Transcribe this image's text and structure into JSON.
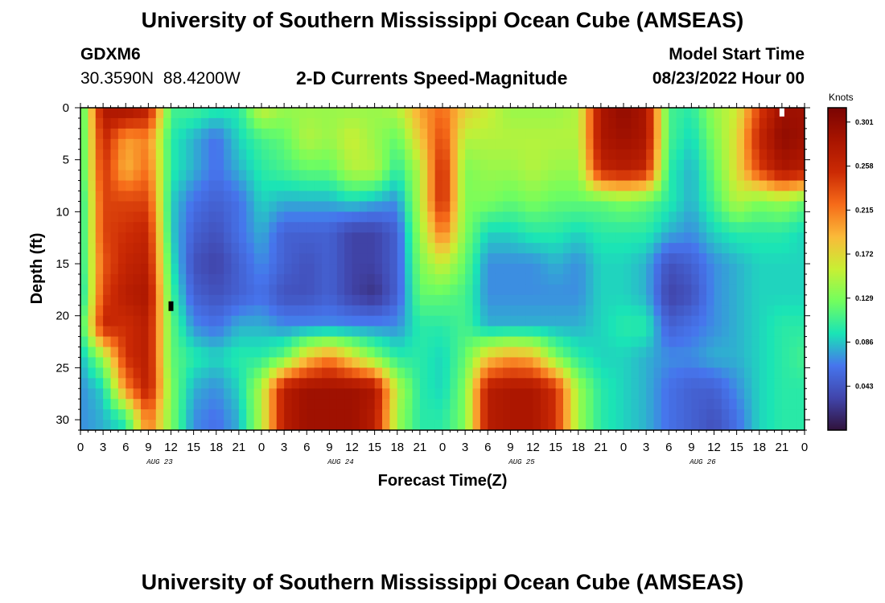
{
  "header": {
    "title": "University of Southern Mississippi Ocean Cube (AMSEAS)",
    "station": "GDXM6",
    "coordinates": "30.3590N  88.4200W",
    "plot_title": "2-D Currents Speed-Magnitude",
    "model_start_label": "Model Start Time",
    "model_start_value": "08/23/2022 Hour 00"
  },
  "footer": {
    "title": "University of Southern Mississippi Ocean Cube (AMSEAS)"
  },
  "chart_data": {
    "type": "heatmap",
    "title": "2-D Currents Speed-Magnitude",
    "xlabel": "Forecast Time(Z)",
    "ylabel": "Depth (ft)",
    "x_tick_labels": [
      "0",
      "3",
      "6",
      "9",
      "12",
      "15",
      "18",
      "21",
      "0",
      "3",
      "6",
      "9",
      "12",
      "15",
      "18",
      "21",
      "0",
      "3",
      "6",
      "9",
      "12",
      "15",
      "18",
      "21",
      "0",
      "3",
      "6",
      "9",
      "12",
      "15",
      "18",
      "21",
      "0"
    ],
    "xlim_hours": [
      0,
      96
    ],
    "date_labels": [
      {
        "label": "AUG 23",
        "hour": 10.5
      },
      {
        "label": "AUG 24",
        "hour": 34.5
      },
      {
        "label": "AUG 25",
        "hour": 58.5
      },
      {
        "label": "AUG 26",
        "hour": 82.5
      }
    ],
    "y_ticks": [
      0,
      5,
      10,
      15,
      20,
      25,
      30
    ],
    "ylim_ft": [
      0,
      31
    ],
    "colorbar": {
      "unit": "Knots",
      "ticks": [
        "0.301",
        "0.258",
        "0.215",
        "0.172",
        "0.129",
        "0.086",
        "0.043"
      ],
      "tick_values": [
        0.301,
        0.258,
        0.215,
        0.172,
        0.129,
        0.086,
        0.043
      ],
      "range": [
        0.0,
        0.315
      ]
    },
    "grid": {
      "hours": [
        0,
        3,
        6,
        9,
        12,
        15,
        18,
        21,
        24,
        27,
        30,
        33,
        36,
        39,
        42,
        45,
        48,
        51,
        54,
        57,
        60,
        63,
        66,
        69,
        72,
        75,
        78,
        81,
        84,
        87,
        90,
        93,
        96
      ],
      "depths_ft": [
        0,
        3,
        6,
        9,
        12,
        15,
        18,
        21,
        24,
        27,
        30
      ],
      "speed_knots": [
        [
          0.1,
          0.28,
          0.29,
          0.27,
          0.11,
          0.11,
          0.1,
          0.1,
          0.16,
          0.14,
          0.14,
          0.14,
          0.14,
          0.14,
          0.15,
          0.2,
          0.22,
          0.18,
          0.16,
          0.14,
          0.14,
          0.14,
          0.15,
          0.28,
          0.3,
          0.28,
          0.11,
          0.1,
          0.14,
          0.16,
          0.24,
          0.29,
          0.29
        ],
        [
          0.1,
          0.26,
          0.2,
          0.21,
          0.1,
          0.08,
          0.06,
          0.09,
          0.11,
          0.12,
          0.15,
          0.14,
          0.16,
          0.14,
          0.12,
          0.18,
          0.24,
          0.15,
          0.15,
          0.15,
          0.15,
          0.15,
          0.15,
          0.28,
          0.29,
          0.28,
          0.11,
          0.09,
          0.13,
          0.17,
          0.26,
          0.3,
          0.29
        ],
        [
          0.1,
          0.25,
          0.19,
          0.22,
          0.1,
          0.08,
          0.06,
          0.08,
          0.1,
          0.11,
          0.12,
          0.12,
          0.15,
          0.15,
          0.1,
          0.15,
          0.26,
          0.13,
          0.14,
          0.14,
          0.15,
          0.14,
          0.14,
          0.26,
          0.27,
          0.26,
          0.1,
          0.08,
          0.12,
          0.17,
          0.24,
          0.28,
          0.27
        ],
        [
          0.09,
          0.24,
          0.24,
          0.24,
          0.09,
          0.06,
          0.05,
          0.06,
          0.09,
          0.08,
          0.08,
          0.08,
          0.09,
          0.08,
          0.07,
          0.15,
          0.26,
          0.13,
          0.13,
          0.12,
          0.13,
          0.12,
          0.12,
          0.12,
          0.13,
          0.12,
          0.1,
          0.08,
          0.11,
          0.15,
          0.13,
          0.14,
          0.12
        ],
        [
          0.09,
          0.24,
          0.25,
          0.26,
          0.09,
          0.05,
          0.04,
          0.06,
          0.08,
          0.05,
          0.05,
          0.05,
          0.03,
          0.03,
          0.05,
          0.14,
          0.22,
          0.13,
          0.09,
          0.09,
          0.1,
          0.1,
          0.09,
          0.1,
          0.1,
          0.1,
          0.08,
          0.07,
          0.09,
          0.1,
          0.1,
          0.1,
          0.09
        ],
        [
          0.09,
          0.23,
          0.26,
          0.27,
          0.1,
          0.04,
          0.03,
          0.05,
          0.07,
          0.05,
          0.04,
          0.05,
          0.03,
          0.03,
          0.05,
          0.13,
          0.16,
          0.12,
          0.07,
          0.07,
          0.07,
          0.08,
          0.07,
          0.09,
          0.09,
          0.08,
          0.04,
          0.05,
          0.07,
          0.08,
          0.09,
          0.09,
          0.09
        ],
        [
          0.08,
          0.24,
          0.27,
          0.28,
          0.11,
          0.05,
          0.04,
          0.05,
          0.06,
          0.04,
          0.04,
          0.05,
          0.03,
          0.02,
          0.05,
          0.12,
          0.12,
          0.11,
          0.07,
          0.07,
          0.07,
          0.07,
          0.07,
          0.09,
          0.09,
          0.08,
          0.03,
          0.04,
          0.07,
          0.08,
          0.09,
          0.09,
          0.09
        ],
        [
          0.1,
          0.26,
          0.25,
          0.27,
          0.12,
          0.07,
          0.06,
          0.08,
          0.08,
          0.07,
          0.07,
          0.07,
          0.07,
          0.07,
          0.07,
          0.1,
          0.1,
          0.11,
          0.08,
          0.08,
          0.08,
          0.08,
          0.08,
          0.09,
          0.1,
          0.1,
          0.05,
          0.06,
          0.07,
          0.08,
          0.09,
          0.1,
          0.1
        ],
        [
          0.08,
          0.14,
          0.25,
          0.27,
          0.12,
          0.1,
          0.09,
          0.1,
          0.1,
          0.12,
          0.18,
          0.21,
          0.17,
          0.13,
          0.1,
          0.1,
          0.09,
          0.12,
          0.18,
          0.2,
          0.19,
          0.13,
          0.1,
          0.09,
          0.09,
          0.08,
          0.07,
          0.07,
          0.08,
          0.08,
          0.09,
          0.1,
          0.11
        ],
        [
          0.07,
          0.09,
          0.21,
          0.27,
          0.13,
          0.08,
          0.07,
          0.09,
          0.15,
          0.27,
          0.29,
          0.29,
          0.29,
          0.28,
          0.15,
          0.1,
          0.09,
          0.13,
          0.27,
          0.28,
          0.28,
          0.25,
          0.14,
          0.1,
          0.09,
          0.08,
          0.06,
          0.05,
          0.05,
          0.07,
          0.09,
          0.1,
          0.1
        ],
        [
          0.07,
          0.08,
          0.1,
          0.22,
          0.13,
          0.07,
          0.06,
          0.08,
          0.15,
          0.27,
          0.29,
          0.29,
          0.29,
          0.27,
          0.14,
          0.1,
          0.1,
          0.13,
          0.27,
          0.28,
          0.28,
          0.25,
          0.14,
          0.1,
          0.09,
          0.08,
          0.06,
          0.05,
          0.04,
          0.06,
          0.09,
          0.1,
          0.1
        ]
      ]
    },
    "markers": [
      {
        "hour": 12,
        "depth_ft": 19,
        "color": "#000000"
      },
      {
        "hour": 93,
        "depth_ft": 0.3,
        "color": "#ffffff"
      }
    ]
  }
}
